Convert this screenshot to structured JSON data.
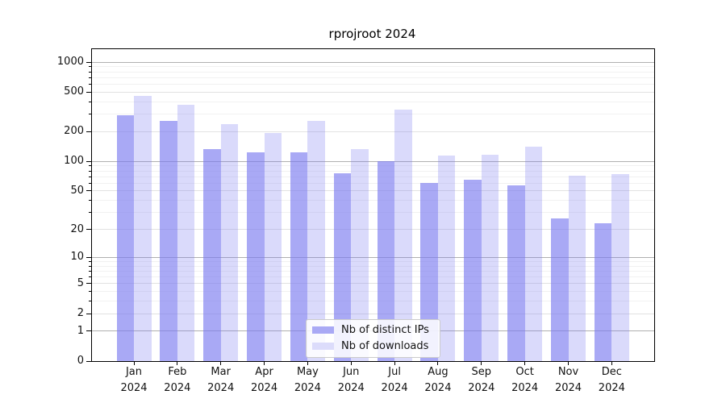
{
  "title": "rprojroot 2024",
  "x_year": "2024",
  "legend": {
    "items": [
      {
        "key": "ips",
        "label": "Nb of distinct IPs"
      },
      {
        "key": "downloads",
        "label": "Nb of downloads"
      }
    ]
  },
  "colors": {
    "bar_rgb": "123,123,240",
    "ips_alpha": 0.65,
    "downloads_alpha": 0.28,
    "legend_ips_swatch": "#a9a9f5",
    "legend_downloads_swatch": "#dcdcfb",
    "grid_power": "#b0b0b0",
    "grid_labeled": "#e2e2e2",
    "grid_minor": "#f1f1f1",
    "axis": "#000000",
    "text": "#111111"
  },
  "chart_data": {
    "type": "bar",
    "title": "rprojroot 2024",
    "categories": [
      "Jan 2024",
      "Feb 2024",
      "Mar 2024",
      "Apr 2024",
      "May 2024",
      "Jun 2024",
      "Jul 2024",
      "Aug 2024",
      "Sep 2024",
      "Oct 2024",
      "Nov 2024",
      "Dec 2024"
    ],
    "months": [
      "Jan",
      "Feb",
      "Mar",
      "Apr",
      "May",
      "Jun",
      "Jul",
      "Aug",
      "Sep",
      "Oct",
      "Nov",
      "Dec"
    ],
    "series": [
      {
        "key": "ips",
        "name": "Nb of distinct IPs",
        "values": [
          293,
          259,
          133,
          124,
          124,
          76,
          101,
          60,
          65,
          57,
          26,
          23
        ]
      },
      {
        "key": "downloads",
        "name": "Nb of downloads",
        "values": [
          458,
          375,
          236,
          195,
          255,
          132,
          333,
          114,
          117,
          141,
          72,
          75
        ]
      }
    ],
    "xlabel": "",
    "ylabel": "",
    "y_scale": "log1p",
    "y_ticks": [
      0,
      1,
      2,
      5,
      10,
      20,
      50,
      100,
      200,
      500,
      1000
    ],
    "y_minor_ticks": [
      3,
      4,
      6,
      7,
      8,
      9,
      30,
      40,
      60,
      70,
      80,
      90,
      300,
      400,
      600,
      700,
      800,
      900
    ],
    "ylim": [
      0,
      1340
    ],
    "grid": "both",
    "legend_position": "lower center"
  }
}
